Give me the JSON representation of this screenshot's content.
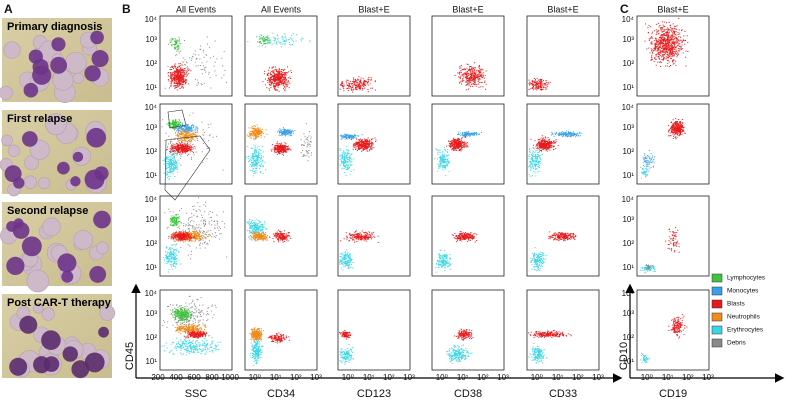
{
  "panel_labels": [
    "A",
    "B",
    "C"
  ],
  "panel_a_rows": [
    "Primary diagnosis",
    "First relapse",
    "Second relapse",
    "Post CAR-T therapy"
  ],
  "columns": [
    {
      "header": "All Events",
      "x_label": "SSC"
    },
    {
      "header": "All Events",
      "x_label": "CD34"
    },
    {
      "header": "Blast+E",
      "x_label": "CD123"
    },
    {
      "header": "Blast+E",
      "x_label": "CD38"
    },
    {
      "header": "Blast+E",
      "x_label": "CD33"
    },
    {
      "header": "Blast+E",
      "x_label": "CD19"
    }
  ],
  "y_axis_labels": [
    "CD45",
    "CD10"
  ],
  "y_ticks": [
    "10⁴",
    "10³",
    "10²",
    "10¹"
  ],
  "ssc_ticks": [
    "200",
    "400",
    "600",
    "800",
    "1000"
  ],
  "log_ticks": [
    "10⁰",
    "10¹",
    "10²",
    "10³"
  ],
  "legend": [
    {
      "label": "Lymphocytes",
      "color": "#3ec43e"
    },
    {
      "label": "Monocytes",
      "color": "#3aa0e8"
    },
    {
      "label": "Blasts",
      "color": "#e8191b"
    },
    {
      "label": "Neutrophils",
      "color": "#f08c1a"
    },
    {
      "label": "Erythrocytes",
      "color": "#39d6e6"
    },
    {
      "label": "Debris",
      "color": "#8a8a8a"
    }
  ]
}
